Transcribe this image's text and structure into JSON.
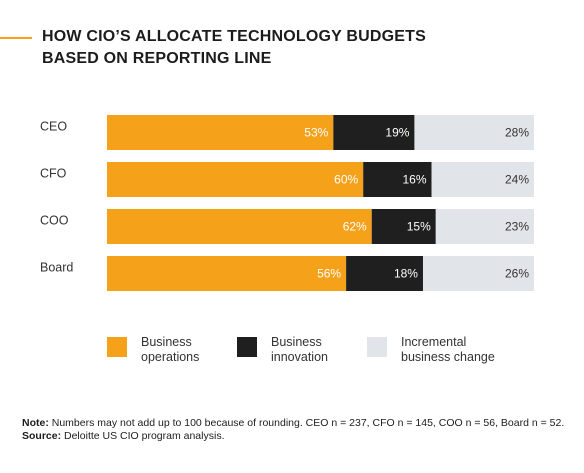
{
  "title_lines": [
    "HOW CIO’S ALLOCATE TECHNOLOGY BUDGETS",
    "BASED ON REPORTING LINE"
  ],
  "colors": {
    "accent": "#f5a11a",
    "business_operations": "#f5a11a",
    "business_innovation": "#1f1f1f",
    "incremental_business_change": "#e1e5ea"
  },
  "chart_data": {
    "type": "bar",
    "orientation": "horizontal",
    "stacked": true,
    "categories": [
      "CEO",
      "CFO",
      "COO",
      "Board"
    ],
    "series": [
      {
        "name": "Business operations",
        "values": [
          53,
          60,
          62,
          56
        ],
        "labels": [
          "53%",
          "60%",
          "62%",
          "56%"
        ]
      },
      {
        "name": "Business innovation",
        "values": [
          19,
          16,
          15,
          18
        ],
        "labels": [
          "19%",
          "16%",
          "15%",
          "18%"
        ]
      },
      {
        "name": "Incremental business change",
        "values": [
          28,
          24,
          23,
          26
        ],
        "labels": [
          "28%",
          "24%",
          "23%",
          "26%"
        ]
      }
    ],
    "xlim": [
      0,
      100
    ],
    "grid": false,
    "legend": "bottom"
  },
  "legend": [
    {
      "line1": "Business",
      "line2": "operations"
    },
    {
      "line1": "Business",
      "line2": "innovation"
    },
    {
      "line1": "Incremental",
      "line2": "business change"
    }
  ],
  "notes": {
    "note_label": "Note:",
    "note_text": " Numbers may not add up to 100 because of rounding. CEO n = 237, CFO n = 145, COO n = 56, Board n = 52.",
    "source_label": "Source:",
    "source_text": " Deloitte US CIO program analysis."
  }
}
